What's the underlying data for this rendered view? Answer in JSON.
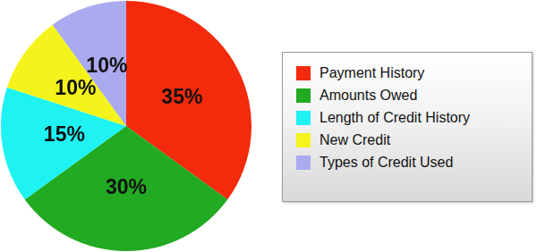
{
  "chart_data": {
    "type": "pie",
    "categories": [
      "Payment History",
      "Amounts Owed",
      "Length of Credit History",
      "New Credit",
      "Types of Credit Used"
    ],
    "values": [
      35,
      30,
      15,
      10,
      10
    ],
    "value_labels": [
      "35%",
      "30%",
      "15%",
      "10%",
      "10%"
    ],
    "colors": [
      "#f32a0c",
      "#22aa22",
      "#1ff2f2",
      "#f4f41c",
      "#aaaaf0"
    ],
    "data_labels": true,
    "legend": "right"
  }
}
